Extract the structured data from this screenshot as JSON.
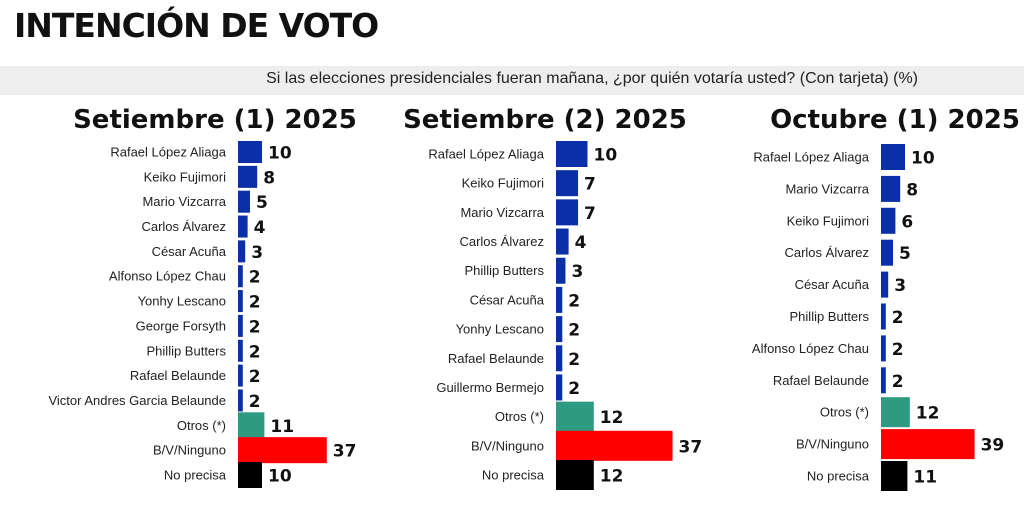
{
  "title": "INTENCIÓN DE VOTO",
  "subtitle": "Si las elecciones presidenciales fueran mañana, ¿por quién votaría usted? (Con tarjeta) (%)",
  "colors": {
    "candidate": "#0a2fa6",
    "otros": "#2e9a81",
    "bvninguno": "#ff0000",
    "noprecisa": "#000000"
  },
  "chart_data": [
    {
      "type": "bar",
      "orientation": "horizontal",
      "title": "Setiembre (1) 2025",
      "categories": [
        "Rafael López Aliaga",
        "Keiko Fujimori",
        "Mario Vizcarra",
        "Carlos Álvarez",
        "César Acuña",
        "Alfonso López Chau",
        "Yonhy Lescano",
        "George Forsyth",
        "Phillip Butters",
        "Rafael Belaunde",
        "Victor Andres Garcia Belaunde",
        "Otros (*)",
        "B/V/Ninguno",
        "No precisa"
      ],
      "values": [
        10,
        8,
        5,
        4,
        3,
        2,
        2,
        2,
        2,
        2,
        2,
        11,
        37,
        10
      ],
      "bar_colors": [
        "candidate",
        "candidate",
        "candidate",
        "candidate",
        "candidate",
        "candidate",
        "candidate",
        "candidate",
        "candidate",
        "candidate",
        "candidate",
        "otros",
        "bvninguno",
        "noprecisa"
      ]
    },
    {
      "type": "bar",
      "orientation": "horizontal",
      "title": "Setiembre (2) 2025",
      "categories": [
        "Rafael López Aliaga",
        "Keiko Fujimori",
        "Mario Vizcarra",
        "Carlos Álvarez",
        "Phillip Butters",
        "César Acuña",
        "Yonhy Lescano",
        "Rafael Belaunde",
        "Guillermo Bermejo",
        "Otros (*)",
        "B/V/Ninguno",
        "No precisa"
      ],
      "values": [
        10,
        7,
        7,
        4,
        3,
        2,
        2,
        2,
        2,
        12,
        37,
        12
      ],
      "bar_colors": [
        "candidate",
        "candidate",
        "candidate",
        "candidate",
        "candidate",
        "candidate",
        "candidate",
        "candidate",
        "candidate",
        "otros",
        "bvninguno",
        "noprecisa"
      ]
    },
    {
      "type": "bar",
      "orientation": "horizontal",
      "title": "Octubre (1) 2025",
      "categories": [
        "Rafael López Aliaga",
        "Mario Vizcarra",
        "Keiko Fujimori",
        "Carlos Álvarez",
        "César Acuña",
        "Phillip Butters",
        "Alfonso López Chau",
        "Rafael Belaunde",
        "Otros (*)",
        "B/V/Ninguno",
        "No precisa"
      ],
      "values": [
        10,
        8,
        6,
        5,
        3,
        2,
        2,
        2,
        12,
        39,
        11
      ],
      "bar_colors": [
        "candidate",
        "candidate",
        "candidate",
        "candidate",
        "candidate",
        "candidate",
        "candidate",
        "candidate",
        "otros",
        "bvninguno",
        "noprecisa"
      ]
    }
  ]
}
